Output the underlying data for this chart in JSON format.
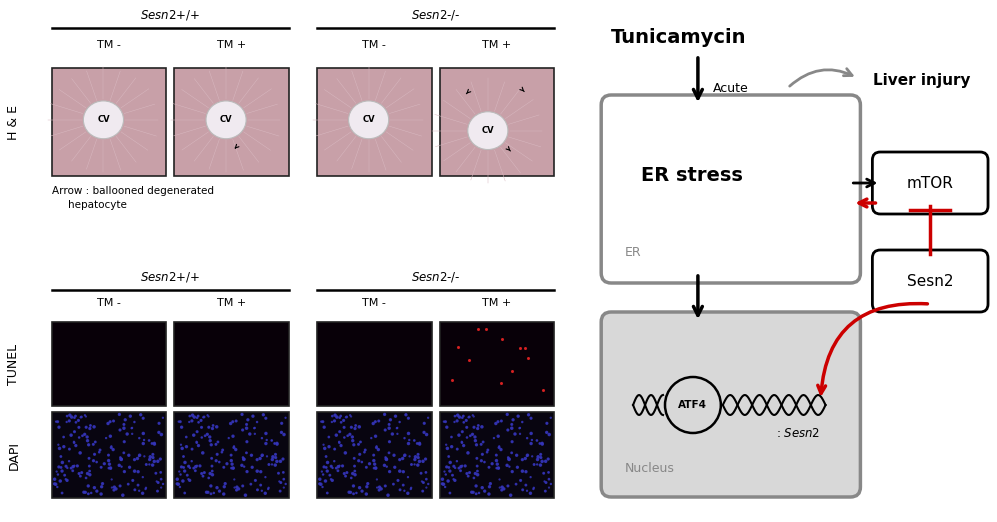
{
  "he_bg_color": "#c8a0a8",
  "he_cv_color": "#f0eaf0",
  "tunel_bg_color": "#080008",
  "dapi_bg_color": "#080510",
  "dapi_dot_color": "#3535bb",
  "groups_top": [
    "Sesn2+/+",
    "Sesn2-/-"
  ],
  "conditions": [
    "TM -",
    "TM +",
    "TM -",
    "TM +"
  ],
  "row_labels_top": "H & E",
  "row_label_tunel": "TUNEL",
  "row_label_dapi": "DAPI",
  "arrow_caption_line1": "Arrow : ballooned degenerated",
  "arrow_caption_line2": "hepatocyte",
  "diagram_title": "Tunicamycin",
  "acute_label": "Acute",
  "liver_injury_label": "Liver injury",
  "er_stress_label": "ER stress",
  "er_label": "ER",
  "mtor_label": "mTOR",
  "sesn2_label": "Sesn2",
  "nucleus_label": "Nucleus",
  "sesn2_gene_label": ": Sesn2",
  "atf4_label": "ATF4",
  "gray_color": "#888888",
  "red_color": "#cc0000",
  "black_color": "#111111",
  "white_color": "#ffffff",
  "nucleus_fill": "#d8d8d8"
}
